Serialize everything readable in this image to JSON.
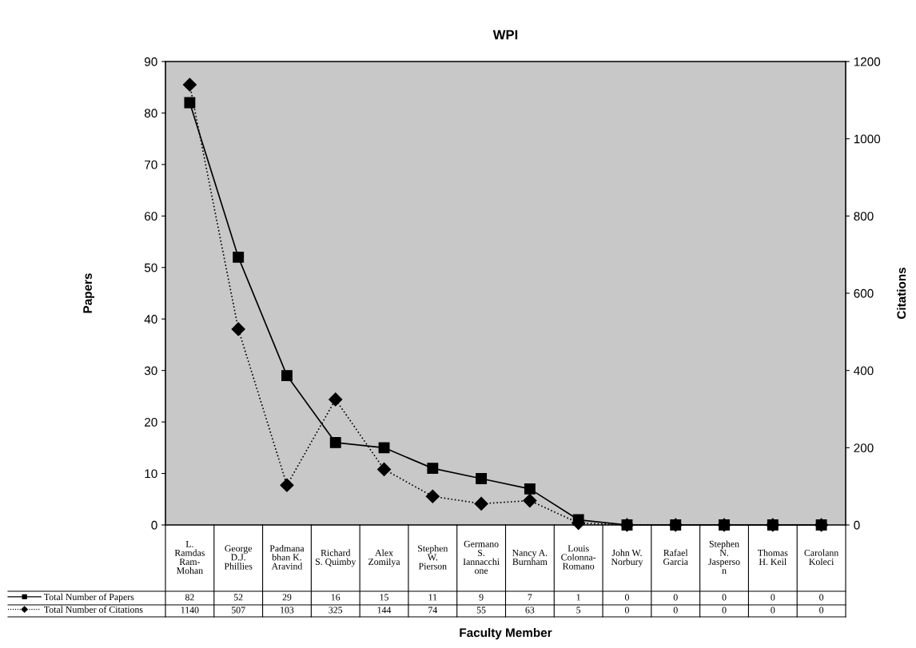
{
  "chart_data": {
    "type": "line",
    "title": "WPI",
    "xlabel": "Faculty Member",
    "ylabel": "Papers",
    "y2label": "Citations",
    "categories": [
      "L.\nRamdas\nRam-\nMohan",
      "George\nD.J.\nPhillies",
      "Padmana\nbhan K.\nAravind",
      "Richard\nS. Quimby",
      "Alex\nZomilya",
      "Stephen\nW.\nPierson",
      "Germano\nS.\nIannacchi\none",
      "Nancy A.\nBurnham",
      "Louis\nColonna-\nRomano",
      "John W.\nNorbury",
      "Rafael\nGarcia",
      "Stephen\nN.\nJasperso\nn",
      "Thomas\nH. Keil",
      "Carolann\nKoleci"
    ],
    "series": [
      {
        "name": "Total Number of Papers",
        "color": "#000000",
        "marker": "square",
        "line_style": "solid",
        "values": [
          82,
          52,
          29,
          16,
          15,
          11,
          9,
          7,
          1,
          0,
          0,
          0,
          0,
          0
        ]
      },
      {
        "name": "Total Number of Citations",
        "color": "#000000",
        "marker": "diamond",
        "line_style": "dotted",
        "axis": "y2",
        "values": [
          1140,
          507,
          103,
          325,
          144,
          74,
          55,
          63,
          5,
          0,
          0,
          0,
          0,
          0
        ]
      }
    ],
    "ylim": [
      0,
      90
    ],
    "yticks": [
      0,
      10,
      20,
      30,
      40,
      50,
      60,
      70,
      80,
      90
    ],
    "y2lim": [
      0,
      1200
    ],
    "y2ticks": [
      0,
      200,
      400,
      600,
      800,
      1000,
      1200
    ],
    "data_labels": true,
    "grid": false,
    "legend": "bottom left"
  }
}
